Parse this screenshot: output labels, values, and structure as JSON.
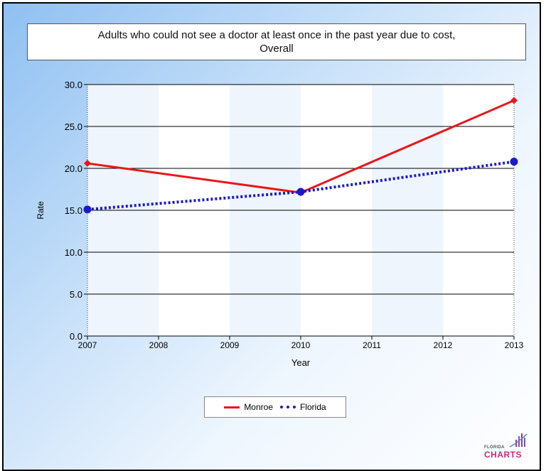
{
  "title_line1": "Adults who could not see a doctor at least once in the past year due to cost,",
  "title_line2": "Overall",
  "logo": {
    "small": "FLORIDA",
    "big": "CHARTS"
  },
  "chart_data": {
    "type": "line",
    "title": "Adults who could not see a doctor at least once in the past year due to cost, Overall",
    "xlabel": "Year",
    "ylabel": "Rate",
    "categories": [
      "2007",
      "2008",
      "2009",
      "2010",
      "2011",
      "2012",
      "2013"
    ],
    "ylim": [
      0,
      30
    ],
    "yticks": [
      "0.0",
      "5.0",
      "10.0",
      "15.0",
      "20.0",
      "25.0",
      "30.0"
    ],
    "grid": true,
    "legend_position": "bottom",
    "series": [
      {
        "name": "Monroe",
        "x": [
          "2007",
          "2010",
          "2013"
        ],
        "values": [
          20.6,
          17.1,
          28.1
        ],
        "color": "#e8171b",
        "style": "solid",
        "marker": "diamond"
      },
      {
        "name": "Florida",
        "x": [
          "2007",
          "2010",
          "2013"
        ],
        "values": [
          15.1,
          17.2,
          20.8
        ],
        "color": "#1a1acc",
        "style": "dotted",
        "marker": "circle"
      }
    ]
  }
}
